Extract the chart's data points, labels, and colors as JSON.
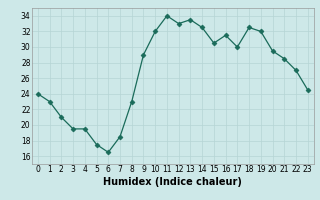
{
  "x": [
    0,
    1,
    2,
    3,
    4,
    5,
    6,
    7,
    8,
    9,
    10,
    11,
    12,
    13,
    14,
    15,
    16,
    17,
    18,
    19,
    20,
    21,
    22,
    23
  ],
  "y": [
    24,
    23,
    21,
    19.5,
    19.5,
    17.5,
    16.5,
    18.5,
    23,
    29,
    32,
    34,
    33,
    33.5,
    32.5,
    30.5,
    31.5,
    30,
    32.5,
    32,
    29.5,
    28.5,
    27,
    24.5
  ],
  "line_color": "#1a6b5a",
  "marker": "D",
  "marker_size": 2.5,
  "bg_color": "#cde8e8",
  "grid_color": "#b5d5d5",
  "xlabel": "Humidex (Indice chaleur)",
  "ylim": [
    15,
    35
  ],
  "yticks": [
    16,
    18,
    20,
    22,
    24,
    26,
    28,
    30,
    32,
    34
  ],
  "xticks": [
    0,
    1,
    2,
    3,
    4,
    5,
    6,
    7,
    8,
    9,
    10,
    11,
    12,
    13,
    14,
    15,
    16,
    17,
    18,
    19,
    20,
    21,
    22,
    23
  ],
  "xlabel_fontsize": 7,
  "tick_fontsize": 5.5
}
